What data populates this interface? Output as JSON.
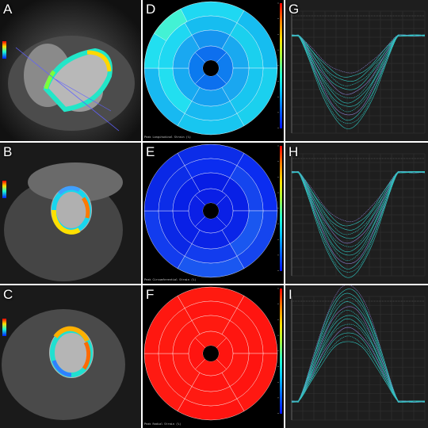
{
  "panels": [
    {
      "id": "A",
      "letter": "A"
    },
    {
      "id": "B",
      "letter": "B"
    },
    {
      "id": "C",
      "letter": "C"
    },
    {
      "id": "D",
      "letter": "D"
    },
    {
      "id": "E",
      "letter": "E"
    },
    {
      "id": "F",
      "letter": "F"
    },
    {
      "id": "G",
      "letter": "G"
    },
    {
      "id": "H",
      "letter": "H"
    },
    {
      "id": "I",
      "letter": "I"
    }
  ],
  "bullseye": {
    "D": {
      "colors": {
        "outer": [
          "#1fd8f2",
          "#16bdf0",
          "#1bd0ee",
          "#18c6f0",
          "#18b9f1",
          "#22dff0"
        ],
        "mid": [
          "#1594ef",
          "#19a9f0",
          "#1aa7f0",
          "#16a1f0",
          "#17aaf1",
          "#1aa8f1"
        ],
        "apex": [
          "#0d6fee",
          "#0f7def",
          "#0c70ee",
          "#0b7aef"
        ],
        "outerTopLeftBright": "#43f2d4"
      },
      "footer": "Peak Longitudinal Strain (%)"
    },
    "E": {
      "colors": {
        "outer": [
          "#0c2de8",
          "#0b2df0",
          "#1545ee",
          "#1a57f0",
          "#123cee",
          "#0a28e6"
        ],
        "mid": [
          "#071de4",
          "#0820e6",
          "#0a25e8",
          "#0a24e6",
          "#0920e6",
          "#0720e6"
        ],
        "apex": [
          "#0a1fe6",
          "#0a20e6",
          "#0a1fe6",
          "#0b20e6"
        ]
      },
      "footer": "Peak Circumferential Strain (%)"
    },
    "F": {
      "colors": {
        "outer": [
          "#ff1a10",
          "#ff1510",
          "#ff1811",
          "#ff1410",
          "#ff1a12",
          "#ff1710"
        ],
        "mid": [
          "#ff1a10",
          "#ff1510",
          "#ff1811",
          "#ff1410",
          "#ff1a12",
          "#ff1710"
        ],
        "apex": [
          "#ff1a10",
          "#ff1510",
          "#ff1811",
          "#ff1410"
        ]
      },
      "footer": "Peak Radial Strain (%)"
    }
  },
  "colorbar": [
    "#ff0000",
    "#ff8000",
    "#ffe000",
    "#a0ff40",
    "#20ffd0",
    "#00c0ff",
    "#0060ff",
    "#0010ff"
  ],
  "strain_curves": {
    "G": {
      "direction": "down",
      "color": "#2ec6c0",
      "baseline": 0.2,
      "peak": 0.75
    },
    "H": {
      "direction": "down",
      "color": "#2ec6c0",
      "baseline": 0.15,
      "peak": 0.8
    },
    "I": {
      "direction": "up",
      "color": "#2ec6c0",
      "baseline": 0.85,
      "peak": 0.15
    }
  }
}
